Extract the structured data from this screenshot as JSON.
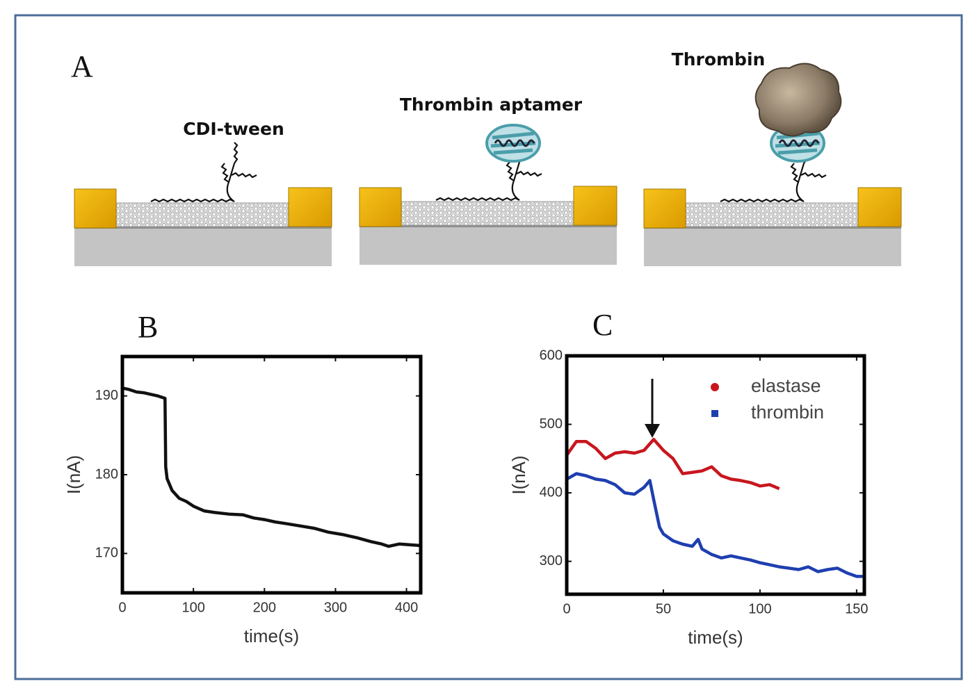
{
  "diagram": {
    "panel_label": "A",
    "labels": [
      "CDI-tween",
      "Thrombin aptamer",
      "Thrombin"
    ]
  },
  "chart_data": [
    {
      "type": "line",
      "panel_label": "B",
      "x_label": "time(s)",
      "y_label": "I(nA)",
      "xlim": [
        0,
        420
      ],
      "ylim": [
        165,
        195
      ],
      "xticks": [
        0,
        100,
        200,
        300,
        400
      ],
      "yticks": [
        170,
        180,
        190
      ],
      "x": [
        0,
        10,
        20,
        30,
        40,
        50,
        60,
        61,
        63,
        70,
        80,
        90,
        100,
        115,
        130,
        150,
        170,
        185,
        200,
        215,
        230,
        250,
        270,
        290,
        310,
        330,
        350,
        365,
        375,
        390,
        405,
        420
      ],
      "series": [
        {
          "color": "#111111",
          "values": [
            191,
            190.8,
            190.5,
            190.4,
            190.2,
            190,
            189.7,
            181,
            179.5,
            178,
            177,
            176.6,
            176,
            175.4,
            175.2,
            175,
            174.9,
            174.5,
            174.3,
            174,
            173.8,
            173.5,
            173.2,
            172.7,
            172.4,
            172,
            171.5,
            171.2,
            170.9,
            171.2,
            171.1,
            171
          ]
        }
      ]
    },
    {
      "type": "line",
      "panel_label": "C",
      "x_label": "time(s)",
      "y_label": "I(nA)",
      "xlim": [
        0,
        154
      ],
      "ylim": [
        252,
        600
      ],
      "xticks": [
        0,
        50,
        100,
        150
      ],
      "yticks": [
        300,
        400,
        500,
        600
      ],
      "legend": "upper right",
      "series": [
        {
          "name": "elastase",
          "color": "#c8161e",
          "marker": "circle",
          "x": [
            0,
            5,
            10,
            15,
            20,
            25,
            30,
            35,
            40,
            45,
            50,
            55,
            60,
            65,
            70,
            75,
            80,
            85,
            90,
            95,
            100,
            105,
            110
          ],
          "values": [
            455,
            475,
            475,
            465,
            450,
            458,
            460,
            458,
            462,
            478,
            462,
            450,
            428,
            430,
            432,
            438,
            425,
            420,
            418,
            415,
            410,
            412,
            406
          ]
        },
        {
          "name": "thrombin",
          "color": "#1f3fb0",
          "marker": "square",
          "x": [
            0,
            5,
            10,
            15,
            20,
            25,
            30,
            35,
            40,
            43,
            45,
            48,
            50,
            55,
            60,
            65,
            68,
            70,
            75,
            80,
            85,
            90,
            95,
            100,
            105,
            110,
            115,
            120,
            125,
            130,
            135,
            140,
            145,
            150,
            154
          ],
          "values": [
            420,
            428,
            425,
            420,
            418,
            412,
            400,
            398,
            408,
            418,
            390,
            350,
            340,
            330,
            325,
            322,
            332,
            318,
            310,
            305,
            308,
            305,
            302,
            298,
            295,
            292,
            290,
            288,
            292,
            285,
            288,
            290,
            283,
            278,
            278
          ]
        }
      ]
    }
  ]
}
